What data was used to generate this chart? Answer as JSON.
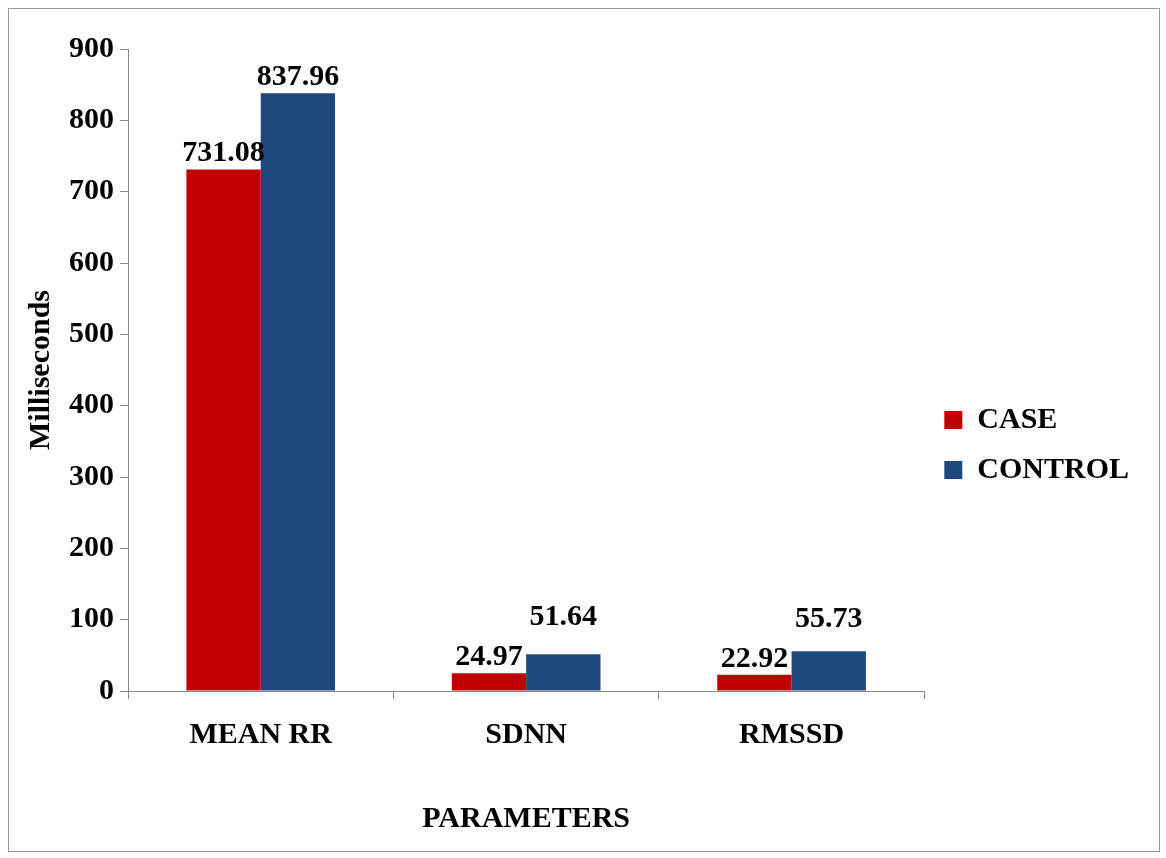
{
  "chart_data": {
    "type": "bar",
    "xlabel": "PARAMETERS",
    "ylabel": "Milliseconds",
    "categories": [
      "MEAN RR",
      "SDNN",
      "RMSSD"
    ],
    "series": [
      {
        "name": "CASE",
        "color": "#c00000",
        "values": [
          731.08,
          24.97,
          22.92
        ]
      },
      {
        "name": "CONTROL",
        "color": "#1f497d",
        "values": [
          837.96,
          51.64,
          55.73
        ]
      }
    ],
    "ylim": [
      0,
      900
    ],
    "yticks": [
      0,
      100,
      200,
      300,
      400,
      500,
      600,
      700,
      800,
      900
    ],
    "grid": false,
    "legend": "right",
    "data_labels": true
  }
}
